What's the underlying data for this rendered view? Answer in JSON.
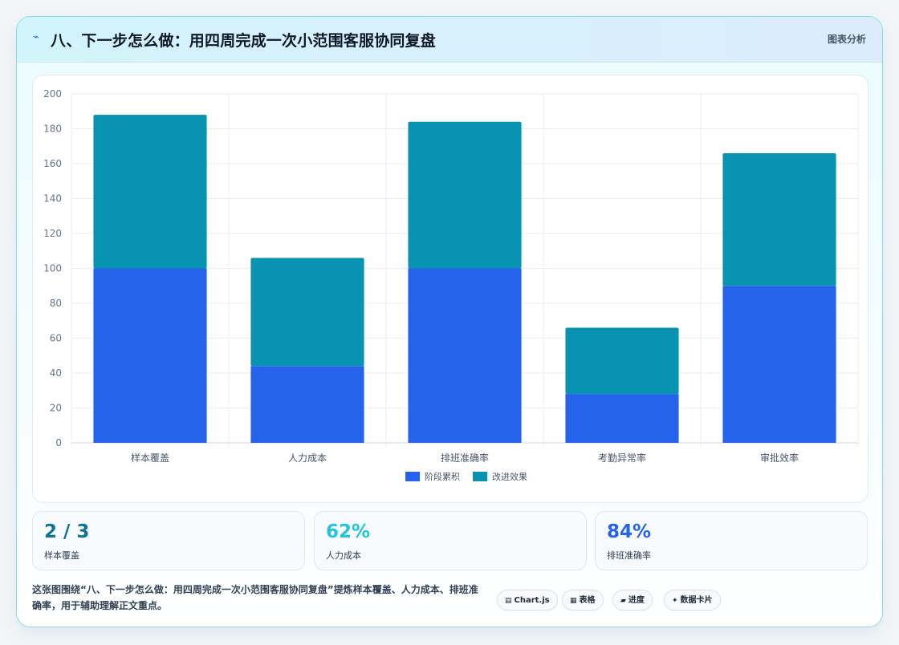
{
  "header": {
    "icon": "lightning-icon",
    "title": "八、下一步怎么做：用四周完成一次小范围客服协同复盘",
    "tag": "图表分析"
  },
  "chart_data": {
    "type": "bar",
    "stacked": true,
    "categories": [
      "样本覆盖",
      "人力成本",
      "排班准确率",
      "考勤异常率",
      "审批效率"
    ],
    "series": [
      {
        "name": "阶段累积",
        "values": [
          100,
          44,
          100,
          28,
          90
        ],
        "color": "#2563eb"
      },
      {
        "name": "改进效果",
        "values": [
          88,
          62,
          84,
          38,
          76
        ],
        "color": "#0893b3"
      }
    ],
    "ylim": [
      0,
      200
    ],
    "yticks": [
      0,
      20,
      40,
      60,
      80,
      100,
      120,
      140,
      160,
      180,
      200
    ],
    "grid": true,
    "legend_position": "bottom"
  },
  "kpis": [
    {
      "value": "2 / 3",
      "label": "样本覆盖",
      "color": "#0e7490"
    },
    {
      "value": "62%",
      "label": "人力成本",
      "color": "#22c3dd"
    },
    {
      "value": "84%",
      "label": "排班准确率",
      "color": "#2563eb"
    }
  ],
  "footer": {
    "text": "这张图围绕“八、下一步怎么做：用四周完成一次小范围客服协同复盘”提炼样本覆盖、人力成本、排班准确率，用于辅助理解正文重点。",
    "chips": [
      {
        "icon": "chart-icon",
        "glyph": "▤",
        "label": "Chart.js"
      },
      {
        "icon": "table-icon",
        "glyph": "▦",
        "label": "表格"
      },
      {
        "icon": "progress-icon",
        "glyph": "▰",
        "label": "进度"
      },
      {
        "icon": "sparkle-icon",
        "glyph": "✦",
        "label": "数据卡片"
      }
    ]
  }
}
